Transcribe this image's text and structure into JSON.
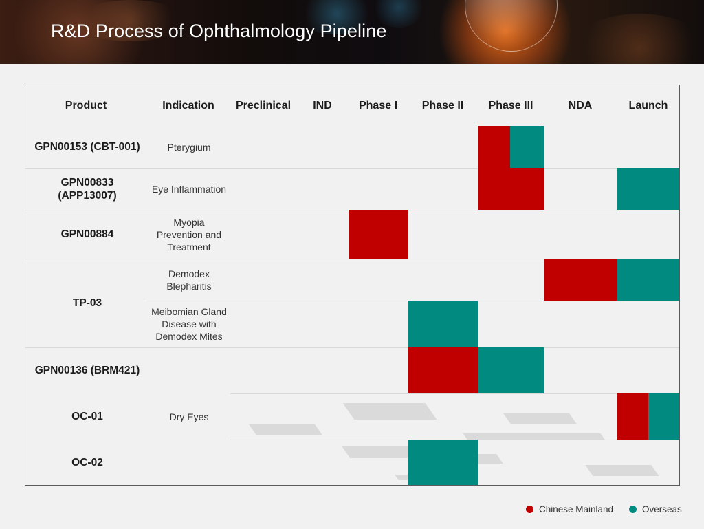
{
  "page": {
    "title": "R&D Process of Ophthalmology Pipeline"
  },
  "colors": {
    "chinese_mainland": "#c00000",
    "overseas": "#008a80",
    "text_dark": "#1c1c1c"
  },
  "table": {
    "headers": {
      "product": "Product",
      "indication": "Indication",
      "preclinical": "Preclinical",
      "ind": "IND",
      "phase1": "Phase I",
      "phase2": "Phase II",
      "phase3": "Phase III",
      "nda": "NDA",
      "launch": "Launch"
    },
    "products": [
      {
        "name": "GPN00153 (CBT-001)"
      },
      {
        "name": "GPN00833\n(APP13007)"
      },
      {
        "name": "GPN00884"
      },
      {
        "name": "TP-03"
      },
      {
        "name": "GPN00136 (BRM421)"
      },
      {
        "name": "OC-01"
      },
      {
        "name": "OC-02"
      }
    ],
    "indications": [
      {
        "text": "Pterygium"
      },
      {
        "text": "Eye Inflammation"
      },
      {
        "text": "Myopia\nPrevention and\nTreatment"
      },
      {
        "text": "Demodex\nBlepharitis"
      },
      {
        "text": "Meibomian Gland\nDisease with\nDemodex Mites"
      },
      {
        "text": "Dry Eyes"
      }
    ]
  },
  "legend": {
    "chinese_mainland": "Chinese Mainland",
    "overseas": "Overseas"
  }
}
